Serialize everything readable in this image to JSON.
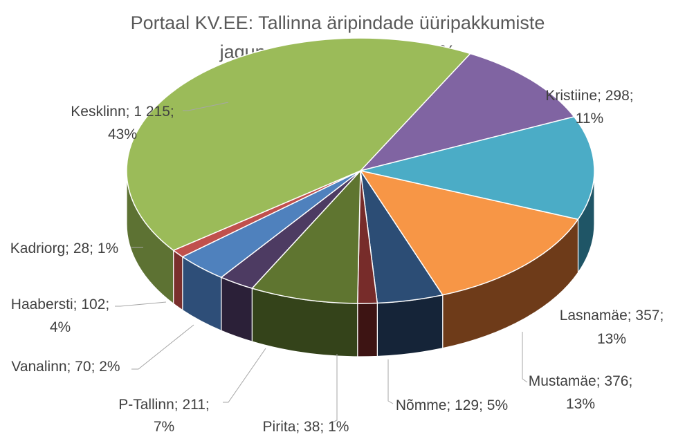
{
  "chart_data": {
    "type": "pie",
    "title": "Portaal KV.EE: Tallinna äripindade üüripakkumiste jagunemine 12.2020, tk ja %",
    "title_lines": [
      "Portaal KV.EE: Tallinna äripindade üüripakkumiste",
      "jagunemine 12.2020, tk ja %"
    ],
    "slices": [
      {
        "name": "Kristiine",
        "value": 298,
        "percent": "11%",
        "color": "#8064a2",
        "side_color": "#4f3d66",
        "label_lines": [
          "Kristiine; 298;",
          "11%"
        ]
      },
      {
        "name": "Lasnamäe",
        "value": 357,
        "percent": "13%",
        "color": "#4bacc6",
        "side_color": "#1f5566",
        "label_lines": [
          "Lasnamäe; 357;",
          "13%"
        ]
      },
      {
        "name": "Mustamäe",
        "value": 376,
        "percent": "13%",
        "color": "#f79646",
        "side_color": "#6e3b19",
        "label_lines": [
          "Mustamäe; 376;",
          "13%"
        ]
      },
      {
        "name": "Nõmme",
        "value": 129,
        "percent": "5%",
        "color": "#2c4d75",
        "side_color": "#152438",
        "label_lines": [
          "Nõmme; 129; 5%"
        ]
      },
      {
        "name": "Pirita",
        "value": 38,
        "percent": "1%",
        "color": "#772c2a",
        "side_color": "#3d1413",
        "label_lines": [
          "Pirita; 38; 1%"
        ]
      },
      {
        "name": "P-Tallinn",
        "value": 211,
        "percent": "7%",
        "color": "#5f7530",
        "side_color": "#34431a",
        "label_lines": [
          "P-Tallinn; 211;",
          "7%"
        ]
      },
      {
        "name": "Vanalinn",
        "value": 70,
        "percent": "2%",
        "color": "#4d3b62",
        "side_color": "#2b2038",
        "label_lines": [
          "Vanalinn; 70; 2%"
        ]
      },
      {
        "name": "Haabersti",
        "value": 102,
        "percent": "4%",
        "color": "#4f81bd",
        "side_color": "#2e4e78",
        "label_lines": [
          "Haabersti; 102;",
          "4%"
        ]
      },
      {
        "name": "Kadriorg",
        "value": 28,
        "percent": "1%",
        "color": "#c0504d",
        "side_color": "#7a2f2d",
        "label_lines": [
          "Kadriorg; 28; 1%"
        ]
      },
      {
        "name": "Kesklinn",
        "value": 1215,
        "percent": "43%",
        "color": "#9bbb59",
        "side_color": "#5d7233",
        "label_lines": [
          "Kesklinn; 1 215;",
          "43%"
        ]
      }
    ]
  }
}
